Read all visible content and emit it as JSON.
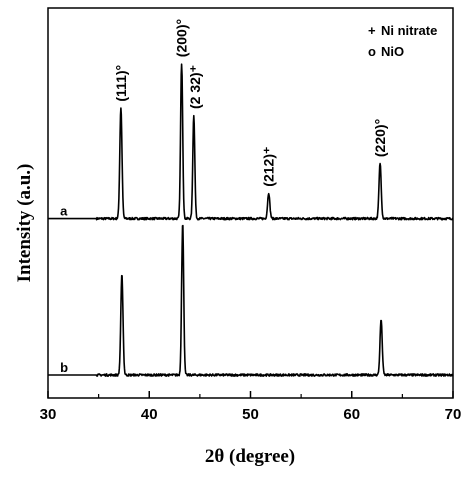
{
  "chart_data": {
    "type": "line",
    "xlabel": "2θ (degree)",
    "ylabel": "Intensity (a.u.)",
    "xlim": [
      30,
      70
    ],
    "xticks": [
      "30",
      "40",
      "50",
      "60",
      "70"
    ],
    "legend": {
      "placement": "top-right",
      "entries": [
        {
          "marker": "+",
          "label": "Ni nitrate"
        },
        {
          "marker": "o",
          "label": "NiO"
        }
      ]
    },
    "series": [
      {
        "name": "a",
        "baseline": 0.02,
        "peaks": [
          {
            "x": 37.2,
            "height": 0.3,
            "width": 0.22
          },
          {
            "x": 43.2,
            "height": 0.42,
            "width": 0.2
          },
          {
            "x": 44.4,
            "height": 0.28,
            "width": 0.2
          },
          {
            "x": 51.8,
            "height": 0.07,
            "width": 0.22
          },
          {
            "x": 62.8,
            "height": 0.15,
            "width": 0.22
          }
        ],
        "annotations": [
          {
            "x": 37.2,
            "text": "(111)°"
          },
          {
            "x": 43.2,
            "text": "(200)°"
          },
          {
            "x": 44.5,
            "text": "(2 32)⁺"
          },
          {
            "x": 51.8,
            "text": "(212)⁺"
          },
          {
            "x": 62.8,
            "text": "(220)°"
          }
        ]
      },
      {
        "name": "b",
        "baseline": 0.0,
        "peaks": [
          {
            "x": 37.3,
            "height": 0.27,
            "width": 0.22
          },
          {
            "x": 43.3,
            "height": 0.41,
            "width": 0.2
          },
          {
            "x": 62.9,
            "height": 0.15,
            "width": 0.22
          }
        ],
        "annotations": []
      }
    ]
  }
}
